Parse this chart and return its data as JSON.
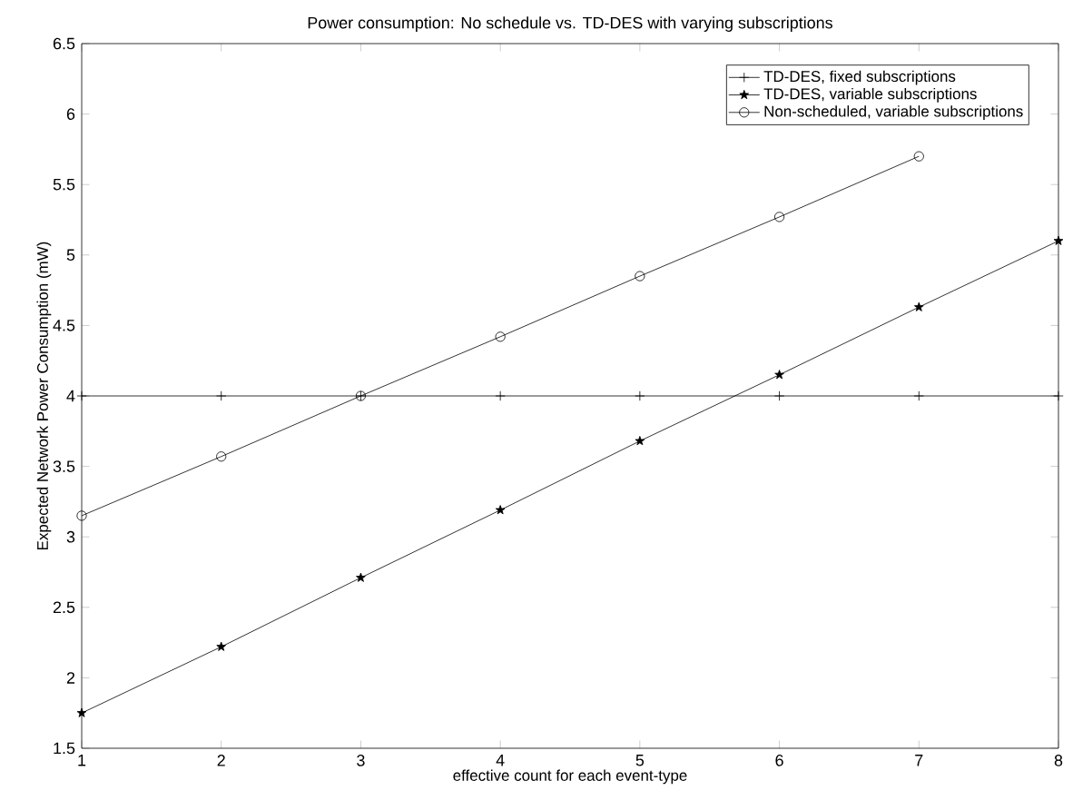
{
  "chart_data": {
    "type": "line",
    "title": "Power consumption:  No schedule vs. TD-DES with varying subscriptions",
    "xlabel": "effective count for each event-type",
    "ylabel": "Expected Network Power Consumption (mW)",
    "x": [
      1,
      2,
      3,
      4,
      5,
      6,
      7,
      8
    ],
    "series": [
      {
        "name": "TD-DES, fixed subscriptions",
        "color": "#000000",
        "marker": "cross",
        "values": [
          4,
          4,
          4,
          4,
          4,
          4,
          4,
          4
        ]
      },
      {
        "name": "TD-DES, variable subscriptions",
        "color": "#000000",
        "marker": "star",
        "values": [
          1.75,
          2.22,
          2.71,
          3.19,
          3.68,
          4.15,
          4.63,
          5.1
        ]
      },
      {
        "name": "Non-scheduled, variable subscriptions",
        "color": "#000000",
        "marker": "circle",
        "values": [
          3.15,
          3.57,
          4.0,
          4.42,
          4.85,
          5.27,
          5.7,
          null
        ]
      }
    ],
    "xlim": [
      1,
      8
    ],
    "ylim": [
      1.5,
      6.5
    ],
    "xticks": [
      1,
      2,
      3,
      4,
      5,
      6,
      7,
      8
    ],
    "yticks": [
      1.5,
      2,
      2.5,
      3,
      3.5,
      4,
      4.5,
      5,
      5.5,
      6,
      6.5
    ],
    "grid": false,
    "legend": "top right",
    "line_style": "solid"
  }
}
